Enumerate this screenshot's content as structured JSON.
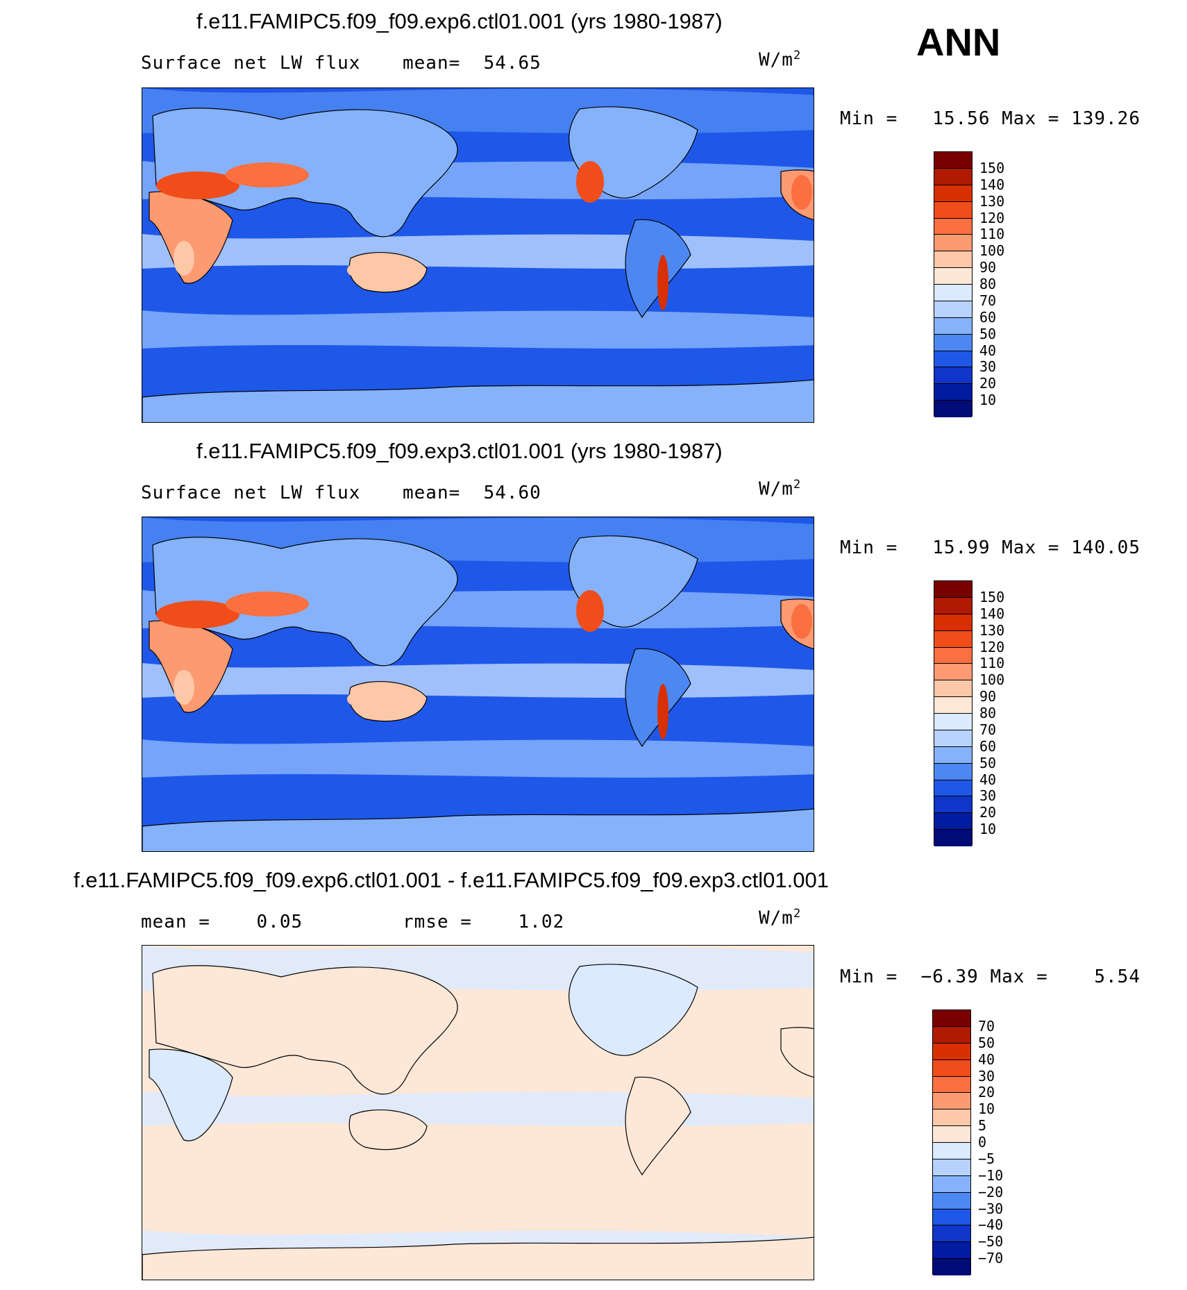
{
  "season": "ANN",
  "panels": [
    {
      "title": "f.e11.FAMIPC5.f09_f09.exp6.ctl01.001 (yrs 1980-1987)",
      "left_label": "Surface net LW flux",
      "mid_label": "mean=  54.65",
      "units": "W/m",
      "units_sup": "2",
      "minmax": "Min =   15.56 Max = 139.26",
      "levels": [
        "150",
        "140",
        "130",
        "120",
        "110",
        "100",
        "90",
        "80",
        "70",
        "60",
        "50",
        "40",
        "30",
        "20",
        "10"
      ],
      "colors": [
        "#7a0000",
        "#b01a00",
        "#d83000",
        "#f04d1a",
        "#fb7040",
        "#fc9a72",
        "#fdc8a8",
        "#fde7d7",
        "#dbeaff",
        "#b7d2ff",
        "#85b2fa",
        "#4d88f2",
        "#1f58e8",
        "#0f36c8",
        "#001ca0",
        "#000b78"
      ]
    },
    {
      "title": "f.e11.FAMIPC5.f09_f09.exp3.ctl01.001 (yrs 1980-1987)",
      "left_label": "Surface net LW flux",
      "mid_label": "mean=  54.60",
      "units": "W/m",
      "units_sup": "2",
      "minmax": "Min =   15.99 Max = 140.05",
      "levels": [
        "150",
        "140",
        "130",
        "120",
        "110",
        "100",
        "90",
        "80",
        "70",
        "60",
        "50",
        "40",
        "30",
        "20",
        "10"
      ],
      "colors": [
        "#7a0000",
        "#b01a00",
        "#d83000",
        "#f04d1a",
        "#fb7040",
        "#fc9a72",
        "#fdc8a8",
        "#fde7d7",
        "#dbeaff",
        "#b7d2ff",
        "#85b2fa",
        "#4d88f2",
        "#1f58e8",
        "#0f36c8",
        "#001ca0",
        "#000b78"
      ]
    },
    {
      "title": "f.e11.FAMIPC5.f09_f09.exp6.ctl01.001 - f.e11.FAMIPC5.f09_f09.exp3.ctl01.001",
      "left_label": "mean =    0.05",
      "mid_label": "rmse =    1.02",
      "units": "W/m",
      "units_sup": "2",
      "minmax": "Min =  −6.39 Max =    5.54",
      "levels": [
        "70",
        "50",
        "40",
        "30",
        "20",
        "10",
        "5",
        "0",
        "−5",
        "−10",
        "−20",
        "−30",
        "−40",
        "−50",
        "−70"
      ],
      "colors": [
        "#7a0000",
        "#b01a00",
        "#d83000",
        "#f04d1a",
        "#fb7040",
        "#fc9a72",
        "#fdc8a8",
        "#fde7d7",
        "#dbeaff",
        "#b7d2ff",
        "#85b2fa",
        "#4d88f2",
        "#1f58e8",
        "#0f36c8",
        "#001ca0",
        "#000b78"
      ]
    }
  ]
}
